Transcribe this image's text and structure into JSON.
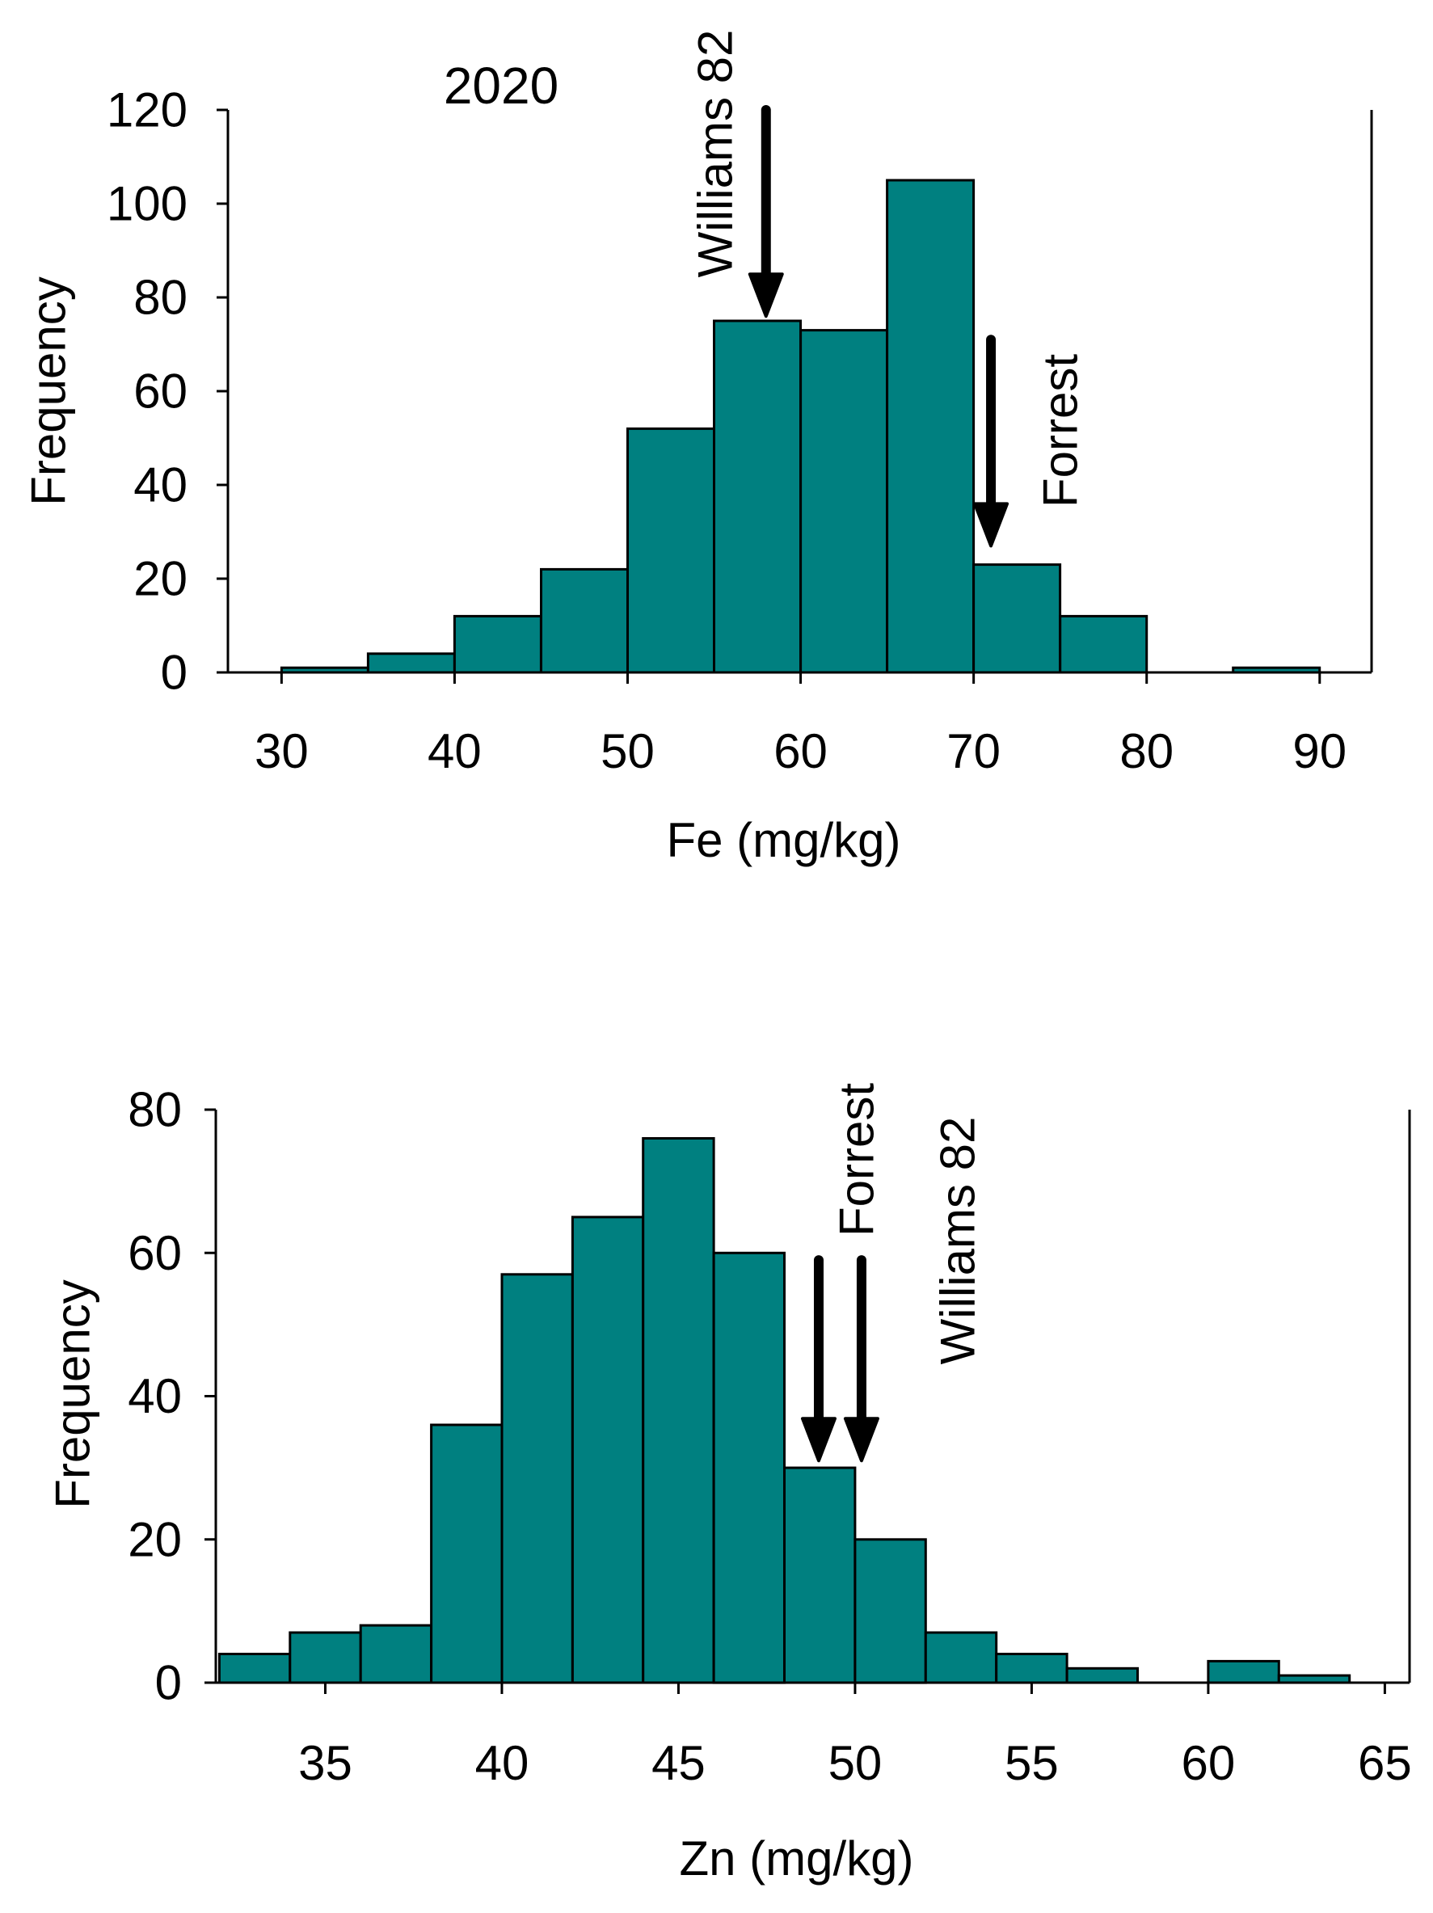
{
  "chart_data": [
    {
      "type": "bar",
      "title": "2020",
      "xlabel": "Fe (mg/kg)",
      "ylabel": "Frequency",
      "bins": [
        {
          "start": 30,
          "end": 35,
          "value": 1
        },
        {
          "start": 35,
          "end": 40,
          "value": 4
        },
        {
          "start": 40,
          "end": 45,
          "value": 12
        },
        {
          "start": 45,
          "end": 50,
          "value": 22
        },
        {
          "start": 50,
          "end": 55,
          "value": 52
        },
        {
          "start": 55,
          "end": 60,
          "value": 75
        },
        {
          "start": 60,
          "end": 65,
          "value": 73
        },
        {
          "start": 65,
          "end": 70,
          "value": 105
        },
        {
          "start": 70,
          "end": 75,
          "value": 23
        },
        {
          "start": 75,
          "end": 80,
          "value": 12
        },
        {
          "start": 80,
          "end": 85,
          "value": 0
        },
        {
          "start": 85,
          "end": 90,
          "value": 1
        }
      ],
      "xlim": [
        26.9,
        93
      ],
      "ylim": [
        0,
        120
      ],
      "xticks": [
        30,
        40,
        50,
        60,
        70,
        80,
        90
      ],
      "yticks": [
        0,
        20,
        40,
        60,
        80,
        100,
        120
      ],
      "bar_color": "#008080",
      "grid": false,
      "annotations": [
        {
          "label": "Williams 82",
          "x": 58,
          "y_top": 120,
          "y_tip": 76
        },
        {
          "label": "Forrest",
          "x": 71,
          "y_top": 71,
          "y_tip": 27
        }
      ]
    },
    {
      "type": "bar",
      "title": "",
      "xlabel": "Zn (mg/kg)",
      "ylabel": "Frequency",
      "bins": [
        {
          "start": 32,
          "end": 34,
          "value": 4
        },
        {
          "start": 34,
          "end": 36,
          "value": 7
        },
        {
          "start": 36,
          "end": 38,
          "value": 8
        },
        {
          "start": 38,
          "end": 40,
          "value": 36
        },
        {
          "start": 40,
          "end": 42,
          "value": 57
        },
        {
          "start": 42,
          "end": 44,
          "value": 65
        },
        {
          "start": 44,
          "end": 46,
          "value": 76
        },
        {
          "start": 46,
          "end": 48,
          "value": 60
        },
        {
          "start": 48,
          "end": 50,
          "value": 30
        },
        {
          "start": 50,
          "end": 52,
          "value": 20
        },
        {
          "start": 52,
          "end": 54,
          "value": 7
        },
        {
          "start": 54,
          "end": 56,
          "value": 4
        },
        {
          "start": 56,
          "end": 58,
          "value": 2
        },
        {
          "start": 58,
          "end": 60,
          "value": 0
        },
        {
          "start": 60,
          "end": 62,
          "value": 3
        },
        {
          "start": 62,
          "end": 64,
          "value": 1
        }
      ],
      "xlim": [
        31.9,
        65.7
      ],
      "ylim": [
        0,
        80
      ],
      "xticks": [
        35,
        40,
        45,
        50,
        55,
        60,
        65
      ],
      "yticks": [
        0,
        20,
        40,
        60,
        80
      ],
      "bar_color": "#008080",
      "grid": false,
      "annotations": [
        {
          "label": "Forrest",
          "x": 49.2,
          "y_top": 59,
          "y_tip": 31
        },
        {
          "label": "Williams 82",
          "x": 50,
          "y_top": 59,
          "y_tip": 31
        }
      ]
    }
  ]
}
